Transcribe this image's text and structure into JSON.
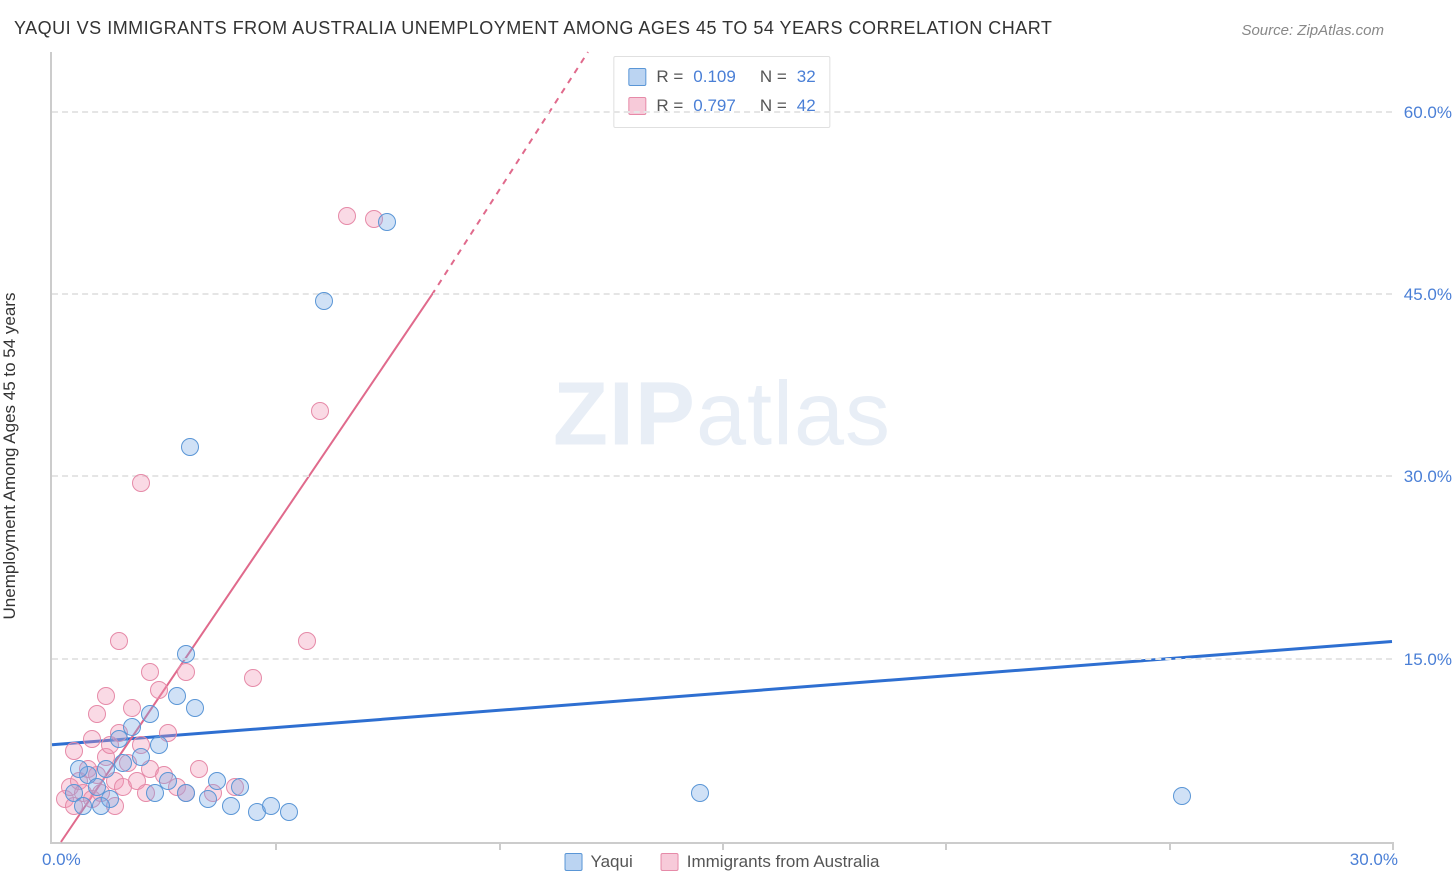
{
  "title": "YAQUI VS IMMIGRANTS FROM AUSTRALIA UNEMPLOYMENT AMONG AGES 45 TO 54 YEARS CORRELATION CHART",
  "source": "Source: ZipAtlas.com",
  "watermark_bold": "ZIP",
  "watermark_light": "atlas",
  "chart": {
    "type": "scatter",
    "x_min": 0.0,
    "x_max": 30.0,
    "y_min": 0.0,
    "y_max": 65.0,
    "x_origin_label": "0.0%",
    "x_max_label": "30.0%",
    "y_axis_label": "Unemployment Among Ages 45 to 54 years",
    "y_ticks": [
      {
        "value": 15.0,
        "label": "15.0%"
      },
      {
        "value": 30.0,
        "label": "30.0%"
      },
      {
        "value": 45.0,
        "label": "45.0%"
      },
      {
        "value": 60.0,
        "label": "60.0%"
      }
    ],
    "x_tick_values": [
      5,
      10,
      15,
      20,
      25,
      30
    ],
    "grid_color": "#e5e5e5",
    "axis_color": "#cccccc",
    "background_color": "#ffffff",
    "series": [
      {
        "name": "Yaqui",
        "color_fill": "rgba(120,170,230,0.35)",
        "color_stroke": "#5a96d6",
        "css_class": "blue",
        "r_value": "0.109",
        "n_value": "32",
        "trend": {
          "x1": 0.0,
          "y1": 8.0,
          "x2": 30.0,
          "y2": 16.5,
          "dash_start_x": 30.0,
          "dash_start_y": 16.5,
          "stroke": "#2e6fd1",
          "width": 3
        },
        "points": [
          [
            0.5,
            4.0
          ],
          [
            0.7,
            3.0
          ],
          [
            0.8,
            5.5
          ],
          [
            1.0,
            4.5
          ],
          [
            1.2,
            6.0
          ],
          [
            1.3,
            3.5
          ],
          [
            1.5,
            8.5
          ],
          [
            1.8,
            9.5
          ],
          [
            2.0,
            7.0
          ],
          [
            2.2,
            10.5
          ],
          [
            2.3,
            4.0
          ],
          [
            2.6,
            5.0
          ],
          [
            2.8,
            12.0
          ],
          [
            3.0,
            4.0
          ],
          [
            3.2,
            11.0
          ],
          [
            3.5,
            3.5
          ],
          [
            3.7,
            5.0
          ],
          [
            4.0,
            3.0
          ],
          [
            4.2,
            4.5
          ],
          [
            4.6,
            2.5
          ],
          [
            4.9,
            3.0
          ],
          [
            5.3,
            2.5
          ],
          [
            3.0,
            15.5
          ],
          [
            3.1,
            32.5
          ],
          [
            6.1,
            44.5
          ],
          [
            7.5,
            51.0
          ],
          [
            14.5,
            4.0
          ],
          [
            25.3,
            3.8
          ],
          [
            2.4,
            8.0
          ],
          [
            1.6,
            6.5
          ],
          [
            1.1,
            3.0
          ],
          [
            0.6,
            6.0
          ]
        ]
      },
      {
        "name": "Immigrants from Australia",
        "color_fill": "rgba(240,150,180,0.35)",
        "color_stroke": "#e68aa8",
        "css_class": "pink",
        "r_value": "0.797",
        "n_value": "42",
        "trend": {
          "x1": 0.2,
          "y1": 0.0,
          "x2": 8.5,
          "y2": 45.0,
          "dash_start_x": 8.5,
          "dash_start_y": 45.0,
          "dash_end_x": 12.0,
          "dash_end_y": 65.0,
          "stroke": "#e06a8c",
          "width": 2
        },
        "points": [
          [
            0.3,
            3.5
          ],
          [
            0.4,
            4.5
          ],
          [
            0.5,
            3.0
          ],
          [
            0.6,
            5.0
          ],
          [
            0.7,
            4.0
          ],
          [
            0.8,
            6.0
          ],
          [
            0.9,
            3.5
          ],
          [
            1.0,
            5.5
          ],
          [
            1.1,
            4.0
          ],
          [
            1.2,
            7.0
          ],
          [
            1.3,
            8.0
          ],
          [
            1.4,
            5.0
          ],
          [
            1.5,
            9.0
          ],
          [
            1.6,
            4.5
          ],
          [
            1.7,
            6.5
          ],
          [
            1.8,
            11.0
          ],
          [
            1.9,
            5.0
          ],
          [
            2.0,
            8.0
          ],
          [
            2.1,
            4.0
          ],
          [
            2.2,
            6.0
          ],
          [
            2.4,
            12.5
          ],
          [
            2.6,
            9.0
          ],
          [
            2.8,
            4.5
          ],
          [
            3.0,
            14.0
          ],
          [
            3.3,
            6.0
          ],
          [
            3.6,
            4.0
          ],
          [
            4.1,
            4.5
          ],
          [
            1.0,
            10.5
          ],
          [
            1.2,
            12.0
          ],
          [
            1.5,
            16.5
          ],
          [
            2.2,
            14.0
          ],
          [
            3.0,
            4.0
          ],
          [
            2.0,
            29.5
          ],
          [
            5.7,
            16.5
          ],
          [
            6.6,
            51.5
          ],
          [
            7.2,
            51.3
          ],
          [
            6.0,
            35.5
          ],
          [
            0.5,
            7.5
          ],
          [
            0.9,
            8.5
          ],
          [
            1.4,
            3.0
          ],
          [
            2.5,
            5.5
          ],
          [
            4.5,
            13.5
          ]
        ]
      }
    ],
    "legend_bottom": [
      {
        "swatch": "blue",
        "label": "Yaqui"
      },
      {
        "swatch": "pink",
        "label": "Immigrants from Australia"
      }
    ],
    "legend_top_rows": [
      {
        "swatch": "blue",
        "r": "0.109",
        "n": "32"
      },
      {
        "swatch": "pink",
        "r": "0.797",
        "n": "42"
      }
    ]
  }
}
